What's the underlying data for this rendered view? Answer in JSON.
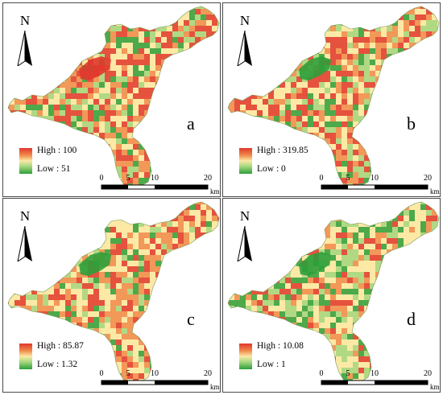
{
  "colors": {
    "high": "#e0372c",
    "mid": "#fbe9a6",
    "low": "#2e9e3a"
  },
  "north_icon": "north-arrow-icon",
  "scale": {
    "ticks": [
      "0",
      "5",
      "10",
      "20"
    ],
    "unit": "km"
  },
  "panels": [
    {
      "letter": "a",
      "north": "N",
      "high": "High : 100",
      "low": "Low : 51"
    },
    {
      "letter": "b",
      "north": "N",
      "high": "High : 319.85",
      "low": "Low : 0"
    },
    {
      "letter": "c",
      "north": "N",
      "high": "High : 85.87",
      "low": "Low : 1.32"
    },
    {
      "letter": "d",
      "north": "N",
      "high": "High : 10.08",
      "low": "Low : 1"
    }
  ]
}
